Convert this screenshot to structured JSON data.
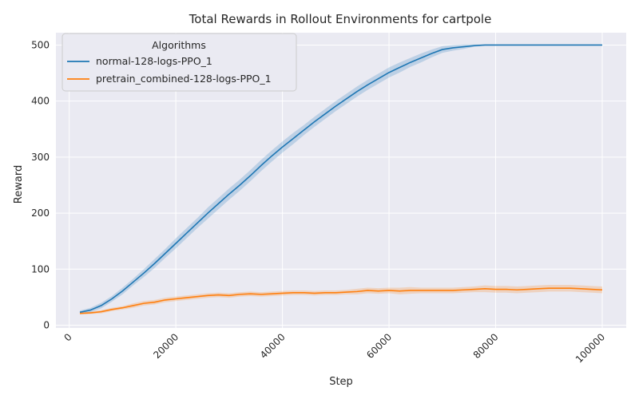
{
  "chart_data": {
    "type": "line",
    "title": "Total Rewards in Rollout Environments for cartpole",
    "xlabel": "Step",
    "ylabel": "Reward",
    "xlim": [
      -2500,
      104500
    ],
    "ylim": [
      -5,
      522
    ],
    "xticks": [
      0,
      20000,
      40000,
      60000,
      80000,
      100000
    ],
    "yticks": [
      0,
      100,
      200,
      300,
      400,
      500
    ],
    "grid": true,
    "legend": {
      "title": "Algorithms",
      "placement": "top-left"
    },
    "x": [
      2000,
      4000,
      6000,
      8000,
      10000,
      12000,
      14000,
      16000,
      18000,
      20000,
      22000,
      24000,
      26000,
      28000,
      30000,
      32000,
      34000,
      36000,
      38000,
      40000,
      42000,
      44000,
      46000,
      48000,
      50000,
      52000,
      54000,
      56000,
      58000,
      60000,
      62000,
      64000,
      66000,
      68000,
      70000,
      72000,
      74000,
      76000,
      78000,
      80000,
      82000,
      84000,
      86000,
      88000,
      90000,
      92000,
      94000,
      96000,
      98000,
      100000
    ],
    "series": [
      {
        "name": "normal-128-logs-PPO_1",
        "color": "#1f77b4",
        "values": [
          23,
          27,
          35,
          47,
          61,
          77,
          93,
          110,
          128,
          146,
          164,
          182,
          200,
          217,
          234,
          250,
          267,
          285,
          302,
          318,
          333,
          348,
          363,
          377,
          391,
          404,
          417,
          429,
          440,
          451,
          460,
          469,
          477,
          485,
          492,
          495,
          497,
          499,
          500,
          500,
          500,
          500,
          500,
          500,
          500,
          500,
          500,
          500,
          500,
          500
        ],
        "band": [
          3,
          4,
          5,
          5,
          6,
          6,
          7,
          8,
          8,
          9,
          9,
          9,
          10,
          10,
          10,
          10,
          10,
          10,
          10,
          10,
          10,
          9,
          9,
          9,
          9,
          9,
          9,
          9,
          9,
          9,
          9,
          8,
          8,
          7,
          6,
          5,
          4,
          2,
          1,
          1,
          0,
          0,
          0,
          0,
          0,
          0,
          0,
          0,
          0,
          0
        ]
      },
      {
        "name": "pretrain_combined-128-logs-PPO_1",
        "color": "#ff7f0e",
        "values": [
          21,
          22,
          24,
          28,
          31,
          35,
          39,
          41,
          45,
          47,
          49,
          51,
          53,
          54,
          53,
          55,
          56,
          55,
          56,
          57,
          58,
          58,
          57,
          58,
          58,
          59,
          60,
          62,
          61,
          62,
          61,
          62,
          62,
          62,
          62,
          62,
          63,
          64,
          65,
          64,
          64,
          63,
          64,
          65,
          66,
          66,
          66,
          65,
          64,
          63
        ],
        "band": [
          2,
          2,
          3,
          3,
          3,
          4,
          4,
          4,
          4,
          4,
          4,
          4,
          4,
          4,
          4,
          4,
          4,
          4,
          4,
          4,
          4,
          4,
          4,
          4,
          4,
          4,
          5,
          5,
          5,
          5,
          6,
          6,
          5,
          5,
          5,
          5,
          5,
          5,
          6,
          6,
          6,
          6,
          6,
          6,
          6,
          6,
          6,
          6,
          6,
          6
        ]
      }
    ]
  }
}
